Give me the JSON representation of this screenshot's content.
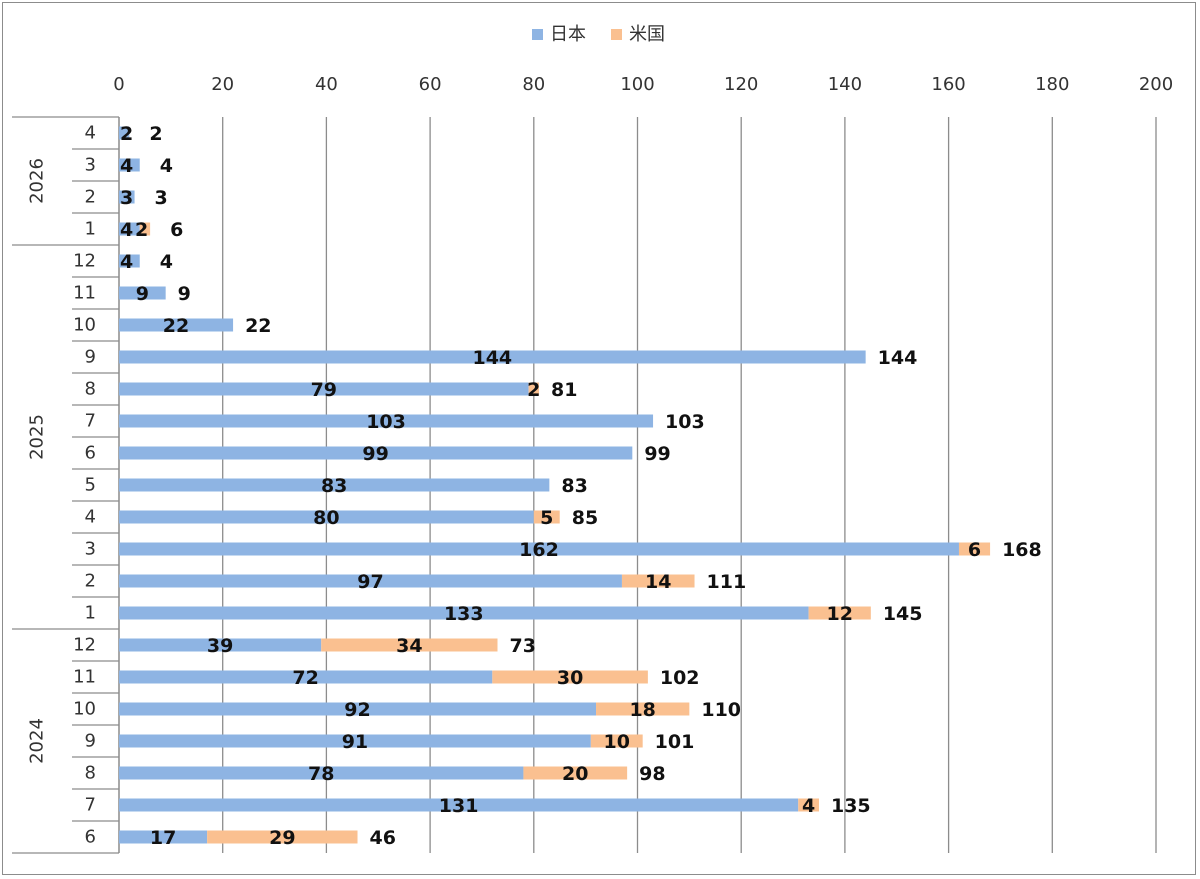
{
  "chart_data": {
    "type": "bar",
    "orientation": "horizontal",
    "stacked": true,
    "xlim": [
      0,
      200
    ],
    "x_ticks": [
      0,
      20,
      40,
      60,
      80,
      100,
      120,
      140,
      160,
      180,
      200
    ],
    "grid": true,
    "legend_position": "top",
    "legend": [
      "日本",
      "米国"
    ],
    "colors": {
      "日本": "#8eb4e3",
      "米国": "#fac090"
    },
    "groups": [
      {
        "label": "2026",
        "categories": [
          "4",
          "3",
          "2",
          "1"
        ]
      },
      {
        "label": "2025",
        "categories": [
          "12",
          "11",
          "10",
          "9",
          "8",
          "7",
          "6",
          "5",
          "4",
          "3",
          "2",
          "1"
        ]
      },
      {
        "label": "2024",
        "categories": [
          "12",
          "11",
          "10",
          "9",
          "8",
          "7",
          "6"
        ]
      }
    ],
    "series": [
      {
        "name": "日本",
        "values": [
          2,
          4,
          3,
          4,
          4,
          9,
          22,
          144,
          79,
          103,
          99,
          83,
          80,
          162,
          97,
          133,
          39,
          72,
          92,
          91,
          78,
          131,
          17
        ]
      },
      {
        "name": "米国",
        "values": [
          0,
          0,
          0,
          2,
          0,
          0,
          0,
          0,
          2,
          0,
          0,
          0,
          5,
          6,
          14,
          12,
          34,
          30,
          18,
          10,
          20,
          4,
          29
        ]
      }
    ],
    "totals": [
      2,
      4,
      3,
      6,
      4,
      9,
      22,
      144,
      81,
      103,
      99,
      83,
      85,
      168,
      111,
      145,
      73,
      102,
      110,
      101,
      98,
      135,
      46
    ]
  }
}
